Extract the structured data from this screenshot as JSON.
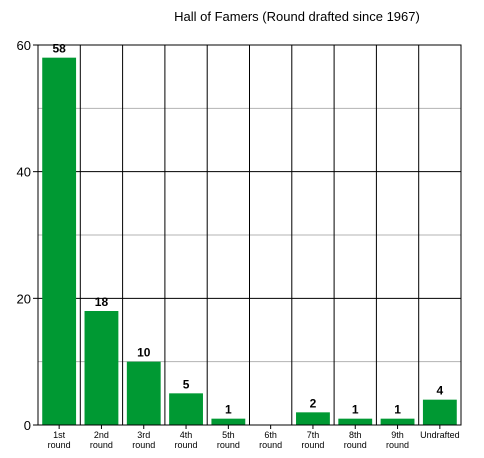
{
  "chart_data": {
    "type": "bar",
    "title": "Hall of Famers (Round drafted since 1967)",
    "xlabel": "",
    "ylabel": "",
    "categories": [
      [
        "1st",
        "round"
      ],
      [
        "2nd",
        "round"
      ],
      [
        "3rd",
        "round"
      ],
      [
        "4th",
        "round"
      ],
      [
        "5th",
        "round"
      ],
      [
        "6th",
        "round"
      ],
      [
        "7th",
        "round"
      ],
      [
        "8th",
        "round"
      ],
      [
        "9th",
        "round"
      ],
      [
        "Undrafted"
      ]
    ],
    "values": [
      58,
      18,
      10,
      5,
      1,
      0,
      2,
      1,
      1,
      4
    ],
    "data_labels": [
      "58",
      "18",
      "10",
      "5",
      "1",
      "",
      "2",
      "1",
      "1",
      "4"
    ],
    "ylim": [
      0,
      60
    ],
    "yticks": [
      0,
      20,
      40,
      60
    ],
    "minor_gridlines": [
      10,
      30,
      50
    ],
    "grid": true,
    "bar_color": "#009933",
    "minor_grid_color": "#b3b3b3"
  }
}
